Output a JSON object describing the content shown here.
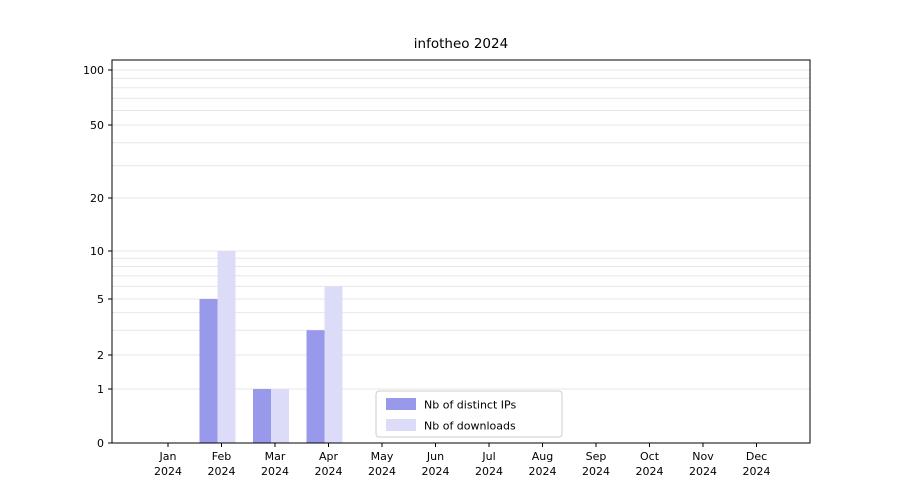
{
  "chart_data": {
    "type": "bar",
    "title": "infotheo 2024",
    "categories": [
      "Jan",
      "Feb",
      "Mar",
      "Apr",
      "May",
      "Jun",
      "Jul",
      "Aug",
      "Sep",
      "Oct",
      "Nov",
      "Dec"
    ],
    "year_label": "2024",
    "series": [
      {
        "name": "Nb of distinct IPs",
        "color": "#9999ec",
        "values": [
          0,
          5,
          1,
          3,
          0,
          0,
          0,
          0,
          0,
          0,
          0,
          0
        ]
      },
      {
        "name": "Nb of downloads",
        "color": "#dcdcf8",
        "values": [
          0,
          10,
          1,
          6,
          0,
          0,
          0,
          0,
          0,
          0,
          0,
          0
        ]
      }
    ],
    "yticks": [
      0,
      1,
      2,
      5,
      10,
      20,
      50,
      100
    ],
    "minor_gridlines": [
      1,
      2,
      3,
      4,
      5,
      6,
      7,
      8,
      9,
      10,
      20,
      30,
      40,
      50,
      60,
      70,
      80,
      90,
      100
    ],
    "ylim": [
      0,
      100
    ],
    "scale": "log-like",
    "grid": "horizontal",
    "grid_color": "#e7e7e7",
    "frame_color": "#000000",
    "legend_position": "lower-center-inside",
    "legend_border_color": "#cccccc"
  }
}
